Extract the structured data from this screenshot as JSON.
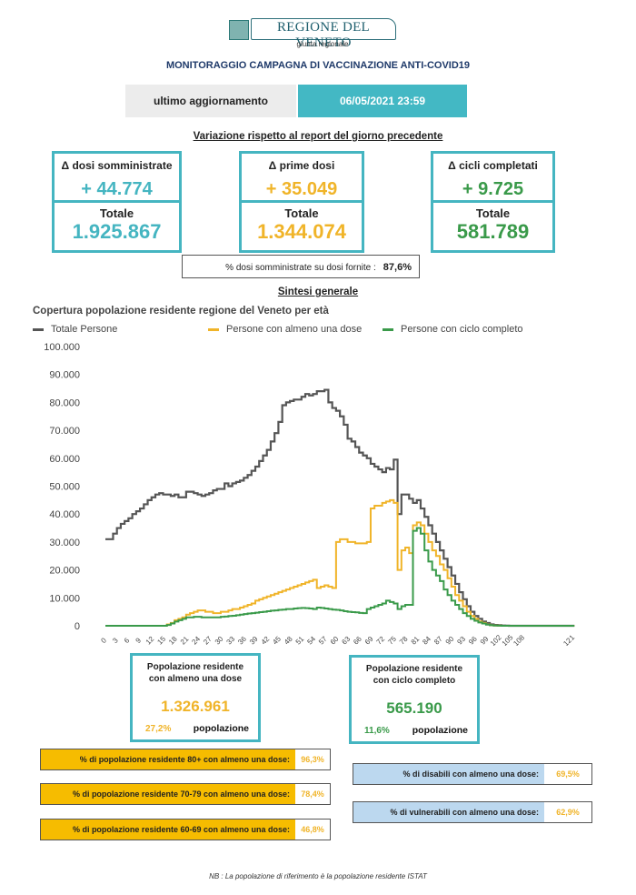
{
  "header": {
    "org_name": "REGIONE DEL VENETO",
    "org_sub": "giunta regionale",
    "title": "MONITORAGGIO CAMPAGNA DI VACCINAZIONE ANTI-COVID19"
  },
  "update": {
    "label": "ultimo aggiornamento",
    "value": "06/05/2021 23:59"
  },
  "variation_title": "Variazione rispetto al report del giorno precedente",
  "kpis": [
    {
      "label": "Δ dosi somministrate",
      "delta": "+ 44.774",
      "total_label": "Totale",
      "total": "1.925.867",
      "color": "#45b5c1"
    },
    {
      "label": "Δ prime dosi",
      "delta": "+ 35.049",
      "total_label": "Totale",
      "total": "1.344.074",
      "color": "#f0b429"
    },
    {
      "label": "Δ cicli completati",
      "delta": "+ 9.725",
      "total_label": "Totale",
      "total": "581.789",
      "color": "#3a9a4a"
    }
  ],
  "pct_doses": {
    "label": "% dosi somministrate su dosi fornite :",
    "value": "87,6%"
  },
  "sintesi_title": "Sintesi generale",
  "chart_data": {
    "type": "line",
    "title": "Copertura popolazione residente regione del Veneto per età",
    "xlabel": "",
    "ylabel": "",
    "ylim": [
      0,
      100000
    ],
    "yticks": [
      0,
      10000,
      20000,
      30000,
      40000,
      50000,
      60000,
      70000,
      80000,
      90000,
      100000
    ],
    "ytick_labels": [
      "0",
      "10.000",
      "20.000",
      "30.000",
      "40.000",
      "50.000",
      "60.000",
      "70.000",
      "80.000",
      "90.000",
      "100.000"
    ],
    "xlim": [
      0,
      121
    ],
    "xtick_labels": [
      "0",
      "3",
      "6",
      "9",
      "12",
      "15",
      "18",
      "21",
      "24",
      "27",
      "30",
      "33",
      "36",
      "39",
      "42",
      "45",
      "48",
      "51",
      "54",
      "57",
      "60",
      "63",
      "66",
      "69",
      "72",
      "75",
      "78",
      "81",
      "84",
      "87",
      "90",
      "93",
      "96",
      "99",
      "102",
      "105",
      "108",
      "121"
    ],
    "legend_position": "top",
    "grid": false,
    "series": [
      {
        "name": "Totale Persone",
        "color": "#555555",
        "values": [
          31000,
          31000,
          33000,
          35000,
          36500,
          37500,
          38500,
          40000,
          41000,
          42000,
          43500,
          45000,
          46000,
          47000,
          47500,
          47000,
          47000,
          46500,
          47000,
          46000,
          46000,
          48000,
          48000,
          47500,
          47000,
          46500,
          47000,
          47500,
          48500,
          49000,
          49000,
          51000,
          50000,
          51000,
          51500,
          52000,
          53000,
          54000,
          55500,
          57000,
          59000,
          61000,
          63000,
          66000,
          69000,
          73000,
          79000,
          80000,
          80500,
          81000,
          81000,
          82000,
          83000,
          82500,
          83000,
          84000,
          84000,
          84500,
          80000,
          78000,
          77000,
          75000,
          72000,
          67000,
          66000,
          64000,
          62000,
          61000,
          60000,
          58000,
          57000,
          56000,
          55000,
          56500,
          56000,
          59500,
          40000,
          47000,
          47000,
          45500,
          44000,
          45000,
          42000,
          39000,
          36000,
          33000,
          30000,
          27000,
          24000,
          21000,
          18000,
          15000,
          12000,
          9500,
          7000,
          5000,
          3500,
          2500,
          1500,
          1000,
          500,
          300,
          200,
          100,
          50,
          0,
          0,
          0,
          0,
          0,
          0,
          0,
          0,
          0,
          0,
          0,
          0,
          0,
          0,
          0,
          0,
          0
        ]
      },
      {
        "name": "Persone con almeno una dose",
        "color": "#f0b429",
        "values": [
          0,
          0,
          0,
          0,
          0,
          0,
          0,
          0,
          0,
          0,
          0,
          0,
          0,
          0,
          0,
          0,
          500,
          1000,
          2000,
          2500,
          3000,
          4000,
          4500,
          5000,
          5500,
          5500,
          5000,
          5000,
          4500,
          4500,
          5000,
          5000,
          5500,
          6000,
          6000,
          6500,
          7000,
          7500,
          8000,
          9000,
          9500,
          10000,
          10500,
          11000,
          11500,
          12000,
          12500,
          13000,
          13500,
          14000,
          14500,
          15000,
          15500,
          16000,
          16500,
          13500,
          14000,
          14500,
          14000,
          13500,
          30000,
          31000,
          31000,
          30000,
          30000,
          29500,
          29500,
          29500,
          30000,
          42000,
          43000,
          43000,
          44000,
          44500,
          45000,
          44000,
          20000,
          27000,
          28000,
          26000,
          36000,
          37000,
          36000,
          33000,
          30000,
          27000,
          25000,
          22000,
          20000,
          17000,
          14000,
          11000,
          9000,
          7000,
          5000,
          3500,
          2500,
          1500,
          1000,
          500,
          200,
          100,
          50,
          0,
          0,
          0,
          0,
          0,
          0,
          0,
          0,
          0,
          0,
          0,
          0,
          0,
          0,
          0,
          0,
          0,
          0,
          0
        ]
      },
      {
        "name": "Persone con ciclo completo",
        "color": "#3a9a4a",
        "values": [
          0,
          0,
          0,
          0,
          0,
          0,
          0,
          0,
          0,
          0,
          0,
          0,
          0,
          0,
          0,
          0,
          300,
          800,
          1500,
          2000,
          2500,
          3000,
          3000,
          3200,
          3200,
          3000,
          3000,
          3000,
          3000,
          3000,
          3200,
          3300,
          3500,
          3600,
          3800,
          4000,
          4200,
          4400,
          4500,
          4700,
          4900,
          5000,
          5200,
          5400,
          5500,
          5700,
          5800,
          6000,
          6000,
          6200,
          6300,
          6400,
          6300,
          6200,
          6000,
          6500,
          6400,
          6200,
          6000,
          5800,
          5700,
          5500,
          5200,
          5000,
          4900,
          4800,
          4600,
          4500,
          6000,
          6500,
          7000,
          7500,
          8000,
          9000,
          8500,
          8000,
          6000,
          7000,
          7500,
          7500,
          34000,
          35000,
          33000,
          27000,
          23000,
          20000,
          18000,
          16000,
          13000,
          11000,
          9000,
          7500,
          6000,
          4500,
          3500,
          2500,
          1800,
          1200,
          800,
          400,
          200,
          100,
          50,
          0,
          0,
          0,
          0,
          0,
          0,
          0,
          0,
          0,
          0,
          0,
          0,
          0,
          0,
          0,
          0,
          0,
          0,
          0
        ]
      }
    ]
  },
  "summary": [
    {
      "label_line1": "Popolazione residente",
      "label_line2": "con almeno una dose",
      "value": "1.326.961",
      "pct": "27,2%",
      "suffix": "popolazione",
      "color": "#f0b429"
    },
    {
      "label_line1": "Popolazione residente",
      "label_line2": "con ciclo completo",
      "value": "565.190",
      "pct": "11,6%",
      "suffix": "popolazione",
      "color": "#3a9a4a"
    }
  ],
  "age_bars": [
    {
      "label": "% di popolazione residente 80+ con almeno una dose:",
      "value": "96,3%"
    },
    {
      "label": "% di popolazione residente 70-79 con almeno una dose:",
      "value": "78,4%"
    },
    {
      "label": "% di popolazione residente 60-69 con almeno una dose:",
      "value": "46,8%"
    }
  ],
  "fragile_bars": [
    {
      "label": "% di disabili con almeno una dose:",
      "value": "69,5%"
    },
    {
      "label": "% di vulnerabili con almeno una dose:",
      "value": "62,9%"
    }
  ],
  "colors": {
    "teal": "#45b5c1",
    "yellow": "#f0b429",
    "green": "#3a9a4a",
    "gray": "#555555",
    "lightblue": "#bcd8ef"
  },
  "note": "NB : La popolazione di riferimento è la popolazione residente ISTAT"
}
